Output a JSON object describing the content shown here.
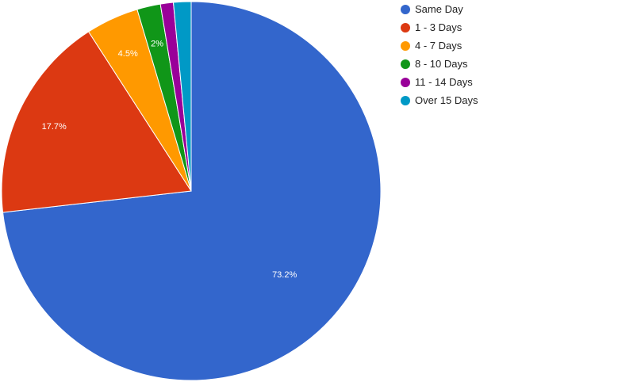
{
  "chart_data": {
    "type": "pie",
    "title": "",
    "categories": [
      "Same Day",
      "1 - 3 Days",
      "4 - 7 Days",
      "8 - 10 Days",
      "11 - 14 Days",
      "Over 15 Days"
    ],
    "values": [
      73.2,
      17.7,
      4.5,
      2.0,
      1.1,
      1.5
    ],
    "value_labels": [
      "73.2%",
      "17.7%",
      "4.5%",
      "2%",
      "",
      ""
    ],
    "colors": [
      "#3366cc",
      "#dc3912",
      "#ff9900",
      "#109618",
      "#990099",
      "#0099c6"
    ],
    "start_angle_deg": 0,
    "direction": "clockwise",
    "legend_position": "right"
  },
  "legend": {
    "items": [
      {
        "label": "Same Day",
        "color": "#3366cc"
      },
      {
        "label": "1 - 3 Days",
        "color": "#dc3912"
      },
      {
        "label": "4 - 7 Days",
        "color": "#ff9900"
      },
      {
        "label": "8 - 10 Days",
        "color": "#109618"
      },
      {
        "label": "11 - 14 Days",
        "color": "#990099"
      },
      {
        "label": "Over 15 Days",
        "color": "#0099c6"
      }
    ]
  }
}
